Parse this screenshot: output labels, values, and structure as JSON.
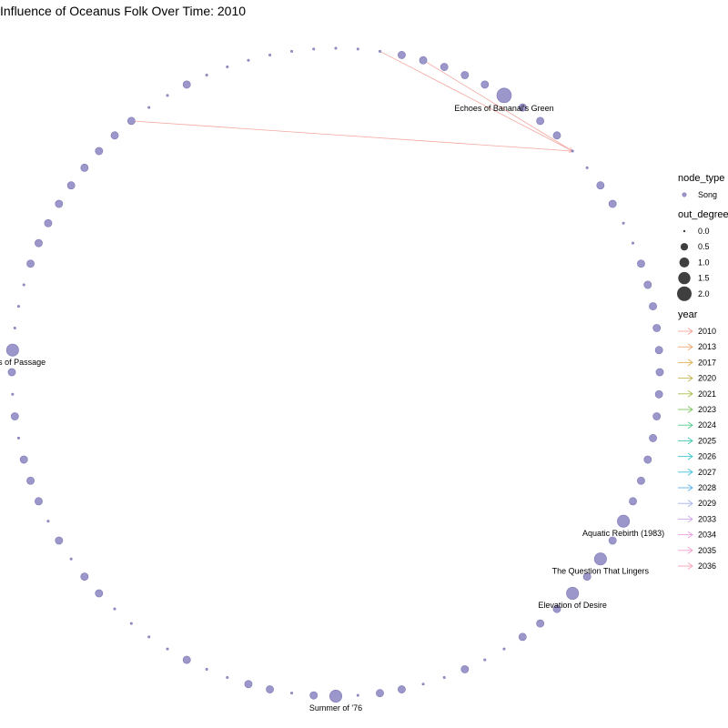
{
  "title": "Influence of Oceanus Folk Over Time: 2010",
  "colors": {
    "node_fill": "#9c97cb",
    "node_stroke": "#7d78b3",
    "edge": "#f4a6a0",
    "legend_shape": "#3f3f3f"
  },
  "graph": {
    "node_count": 92,
    "nodes": [
      {
        "i": 0,
        "out_degree": 0
      },
      {
        "i": 1,
        "out_degree": 0
      },
      {
        "i": 2,
        "out_degree": 0
      },
      {
        "i": 3,
        "out_degree": 0.5
      },
      {
        "i": 4,
        "out_degree": 0.5
      },
      {
        "i": 5,
        "out_degree": 0.5
      },
      {
        "i": 6,
        "out_degree": 0.5
      },
      {
        "i": 7,
        "out_degree": 0.5
      },
      {
        "i": 8,
        "out_degree": 2,
        "label": "Echoes of Bananal's Green"
      },
      {
        "i": 9,
        "out_degree": 0.5
      },
      {
        "i": 10,
        "out_degree": 0.5
      },
      {
        "i": 11,
        "out_degree": 0.5
      },
      {
        "i": 12,
        "out_degree": 0
      },
      {
        "i": 13,
        "out_degree": 0
      },
      {
        "i": 14,
        "out_degree": 0.5
      },
      {
        "i": 15,
        "out_degree": 0.5
      },
      {
        "i": 16,
        "out_degree": 0
      },
      {
        "i": 17,
        "out_degree": 0
      },
      {
        "i": 18,
        "out_degree": 0.5
      },
      {
        "i": 19,
        "out_degree": 0.5
      },
      {
        "i": 20,
        "out_degree": 0.5
      },
      {
        "i": 21,
        "out_degree": 0.5
      },
      {
        "i": 22,
        "out_degree": 0.5
      },
      {
        "i": 23,
        "out_degree": 0.5
      },
      {
        "i": 24,
        "out_degree": 0.5
      },
      {
        "i": 25,
        "out_degree": 0.5
      },
      {
        "i": 26,
        "out_degree": 0.5
      },
      {
        "i": 27,
        "out_degree": 0.5
      },
      {
        "i": 28,
        "out_degree": 0.5
      },
      {
        "i": 29,
        "out_degree": 0.5
      },
      {
        "i": 30,
        "out_degree": 1.5,
        "label": "Aquatic Rebirth (1983)"
      },
      {
        "i": 31,
        "out_degree": 0.5
      },
      {
        "i": 32,
        "out_degree": 1.5,
        "label": "The Question That Lingers"
      },
      {
        "i": 33,
        "out_degree": 0.5
      },
      {
        "i": 34,
        "out_degree": 1.5,
        "label": "Elevation of Desire"
      },
      {
        "i": 35,
        "out_degree": 0.5
      },
      {
        "i": 36,
        "out_degree": 0.5
      },
      {
        "i": 37,
        "out_degree": 0.5
      },
      {
        "i": 38,
        "out_degree": 0
      },
      {
        "i": 39,
        "out_degree": 0
      },
      {
        "i": 40,
        "out_degree": 0.5
      },
      {
        "i": 41,
        "out_degree": 0
      },
      {
        "i": 42,
        "out_degree": 0
      },
      {
        "i": 43,
        "out_degree": 0.5
      },
      {
        "i": 44,
        "out_degree": 0.5
      },
      {
        "i": 45,
        "out_degree": 0
      },
      {
        "i": 46,
        "out_degree": 1.5,
        "label": "Summer of '76"
      },
      {
        "i": 47,
        "out_degree": 0.5
      },
      {
        "i": 48,
        "out_degree": 0
      },
      {
        "i": 49,
        "out_degree": 0.5
      },
      {
        "i": 50,
        "out_degree": 0.5
      },
      {
        "i": 51,
        "out_degree": 0
      },
      {
        "i": 52,
        "out_degree": 0
      },
      {
        "i": 53,
        "out_degree": 0.5
      },
      {
        "i": 54,
        "out_degree": 0
      },
      {
        "i": 55,
        "out_degree": 0
      },
      {
        "i": 56,
        "out_degree": 0
      },
      {
        "i": 57,
        "out_degree": 0
      },
      {
        "i": 58,
        "out_degree": 0.5
      },
      {
        "i": 59,
        "out_degree": 0.5
      },
      {
        "i": 60,
        "out_degree": 0
      },
      {
        "i": 61,
        "out_degree": 0.5
      },
      {
        "i": 62,
        "out_degree": 0
      },
      {
        "i": 63,
        "out_degree": 0.5
      },
      {
        "i": 64,
        "out_degree": 0.5
      },
      {
        "i": 65,
        "out_degree": 0.5
      },
      {
        "i": 66,
        "out_degree": 0
      },
      {
        "i": 67,
        "out_degree": 0.5
      },
      {
        "i": 68,
        "out_degree": 0
      },
      {
        "i": 69,
        "out_degree": 0.5
      },
      {
        "i": 70,
        "out_degree": 1.5,
        "label": "Palms of Passage"
      },
      {
        "i": 71,
        "out_degree": 0
      },
      {
        "i": 72,
        "out_degree": 0
      },
      {
        "i": 73,
        "out_degree": 0
      },
      {
        "i": 74,
        "out_degree": 0.5
      },
      {
        "i": 75,
        "out_degree": 0.5
      },
      {
        "i": 76,
        "out_degree": 0.5
      },
      {
        "i": 77,
        "out_degree": 0.5
      },
      {
        "i": 78,
        "out_degree": 0.5
      },
      {
        "i": 79,
        "out_degree": 0.5
      },
      {
        "i": 80,
        "out_degree": 0.5
      },
      {
        "i": 81,
        "out_degree": 0.5
      },
      {
        "i": 82,
        "out_degree": 0.5
      },
      {
        "i": 83,
        "out_degree": 0
      },
      {
        "i": 84,
        "out_degree": 0
      },
      {
        "i": 85,
        "out_degree": 0.5
      },
      {
        "i": 86,
        "out_degree": 0
      },
      {
        "i": 87,
        "out_degree": 0
      },
      {
        "i": 88,
        "out_degree": 0
      },
      {
        "i": 89,
        "out_degree": 0
      },
      {
        "i": 90,
        "out_degree": 0
      },
      {
        "i": 91,
        "out_degree": 0
      }
    ],
    "edges": [
      {
        "from": 82,
        "to": 12,
        "year": "2010"
      },
      {
        "from": 2,
        "to": 12,
        "year": "2010"
      },
      {
        "from": 4,
        "to": 12,
        "year": "2010"
      }
    ]
  },
  "legend": {
    "node_type": {
      "title": "node_type",
      "items": [
        {
          "label": "Song"
        }
      ]
    },
    "out_degree": {
      "title": "out_degree",
      "items": [
        {
          "label": "0.0",
          "value": 0
        },
        {
          "label": "0.5",
          "value": 0.5
        },
        {
          "label": "1.0",
          "value": 1
        },
        {
          "label": "1.5",
          "value": 1.5
        },
        {
          "label": "2.0",
          "value": 2
        }
      ]
    },
    "year": {
      "title": "year",
      "items": [
        {
          "label": "2010",
          "color": "#f8a39a"
        },
        {
          "label": "2013",
          "color": "#eea873"
        },
        {
          "label": "2017",
          "color": "#ddb057"
        },
        {
          "label": "2020",
          "color": "#c4b84f"
        },
        {
          "label": "2021",
          "color": "#a8bf4a"
        },
        {
          "label": "2023",
          "color": "#7cc65e"
        },
        {
          "label": "2024",
          "color": "#58c98f"
        },
        {
          "label": "2025",
          "color": "#3fcab2"
        },
        {
          "label": "2026",
          "color": "#3fc8cc"
        },
        {
          "label": "2027",
          "color": "#45c1de"
        },
        {
          "label": "2028",
          "color": "#5ab6ee"
        },
        {
          "label": "2029",
          "color": "#a6b3f0"
        },
        {
          "label": "2033",
          "color": "#d0a7ee"
        },
        {
          "label": "2034",
          "color": "#ec9fe2"
        },
        {
          "label": "2035",
          "color": "#f7a0cc"
        },
        {
          "label": "2036",
          "color": "#f9a1b5"
        }
      ]
    }
  }
}
